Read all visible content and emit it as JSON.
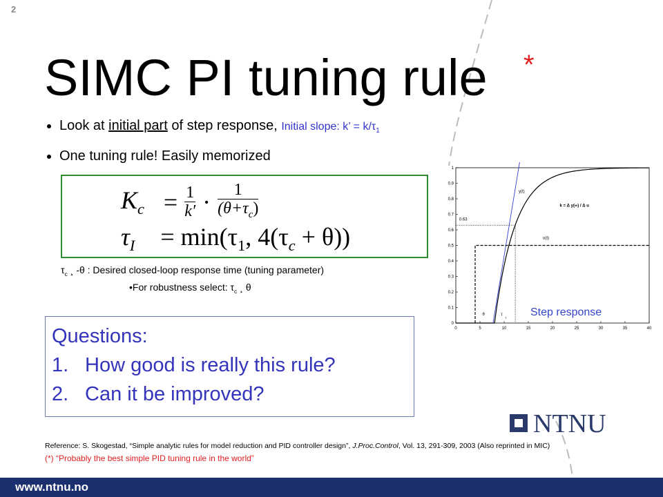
{
  "page_number": "2",
  "title": "SIMC PI tuning rule",
  "title_mark": "*",
  "bullets": [
    {
      "before": "Look at ",
      "underlined": "initial part",
      "after": " of step response, ",
      "note": "Initial slope: k’ = k/τ",
      "note_sub": "1"
    },
    {
      "text": "One tuning rule! Easily memorized"
    }
  ],
  "formula": {
    "line1": {
      "lhs": "K",
      "lhs_sub": "c",
      "eq": "=",
      "num1": "1",
      "den1": "k′",
      "dot": "·",
      "num2": "1",
      "den2": "(θ+τ",
      "den2_sub": "c",
      "den2_end": ")"
    },
    "line2": {
      "lhs": "τ",
      "lhs_sub": "I",
      "eq": "=",
      "rhs1": "min(τ",
      "rhs1_sub": "1",
      "rhs2": ", 4(τ",
      "rhs2_sub": "c",
      "rhs3": " + θ))"
    }
  },
  "notes": [
    {
      "sym": "τ",
      "sub": "c",
      "text": " ¸ -θ : Desired closed-loop response time (tuning parameter)"
    },
    {
      "sym": "•For robustness select: τ",
      "sub": "c",
      "text": " ¸ θ"
    }
  ],
  "questions": {
    "heading": "Questions:",
    "items": [
      {
        "number": "1.",
        "text": "How good is really this rule?"
      },
      {
        "number": "2.",
        "text": "Can it be improved?"
      }
    ]
  },
  "figure": {
    "caption": "Step response",
    "xticks": [
      0,
      5,
      10,
      15,
      20,
      25,
      30,
      35,
      40
    ],
    "yticks": [
      0,
      0.1,
      0.2,
      0.3,
      0.4,
      0.5,
      0.6,
      0.7,
      0.8,
      0.9,
      1
    ],
    "labels": {
      "y": "y(t)",
      "u": "u(t)",
      "gain": "k = Δ y(∞) / Δ u",
      "level": "0.63",
      "delay": "θ",
      "time_constant": "τ",
      "time_constant_sub": "1"
    }
  },
  "logo": "NTNU",
  "reference": {
    "text": "Reference: S. Skogestad, “Simple analytic rules for model reduction and PID controller design”, ",
    "journal": "J.Proc.Control",
    "rest": ", Vol. 13, 291-309, 2003 (Also reprinted in MIC)"
  },
  "footnote": "(*) “Probably the best simple PID tuning rule in the world”",
  "footer": "www.ntnu.no"
}
